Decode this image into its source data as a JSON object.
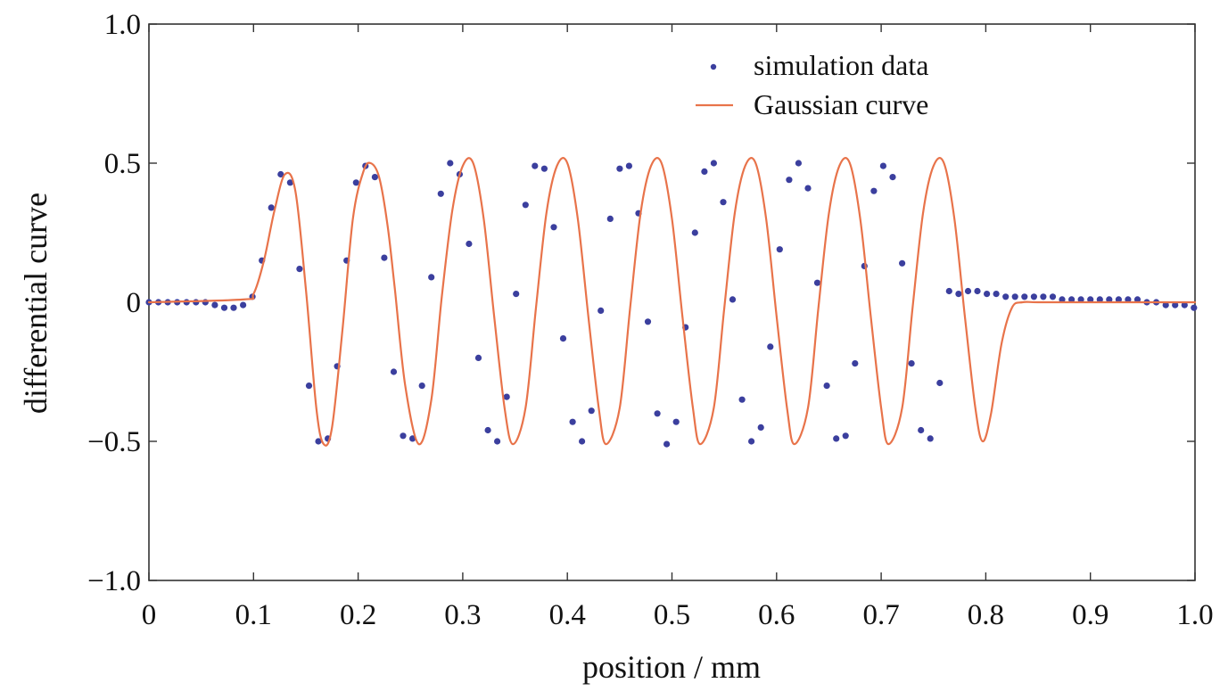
{
  "chart_data": {
    "type": "scatter",
    "title": "",
    "xlabel": "position / mm",
    "ylabel": "differential curve",
    "xlim": [
      0,
      1.0
    ],
    "ylim": [
      -1.0,
      1.0
    ],
    "xticks": [
      0,
      0.1,
      0.2,
      0.3,
      0.4,
      0.5,
      0.6,
      0.7,
      0.8,
      0.9,
      1.0
    ],
    "xtick_labels": [
      "0",
      "0.1",
      "0.2",
      "0.3",
      "0.4",
      "0.5",
      "0.6",
      "0.7",
      "0.8",
      "0.9",
      "1.0"
    ],
    "yticks": [
      -1.0,
      -0.5,
      0,
      0.5,
      1.0
    ],
    "ytick_labels": [
      "−1.0",
      "−0.5",
      "0",
      "0.5",
      "1.0"
    ],
    "grid": false,
    "legend_position": "top-right",
    "series": [
      {
        "name": "simulation data",
        "kind": "scatter",
        "color": "#3b3f9e",
        "x": [
          0.0,
          0.009,
          0.018,
          0.027,
          0.036,
          0.045,
          0.054,
          0.063,
          0.072,
          0.081,
          0.09,
          0.099,
          0.108,
          0.117,
          0.126,
          0.135,
          0.144,
          0.153,
          0.162,
          0.171,
          0.18,
          0.189,
          0.198,
          0.207,
          0.216,
          0.225,
          0.234,
          0.243,
          0.252,
          0.261,
          0.27,
          0.279,
          0.288,
          0.297,
          0.306,
          0.315,
          0.324,
          0.333,
          0.342,
          0.351,
          0.36,
          0.369,
          0.378,
          0.387,
          0.396,
          0.405,
          0.414,
          0.423,
          0.432,
          0.441,
          0.45,
          0.459,
          0.468,
          0.477,
          0.486,
          0.495,
          0.504,
          0.513,
          0.522,
          0.531,
          0.54,
          0.549,
          0.558,
          0.567,
          0.576,
          0.585,
          0.594,
          0.603,
          0.612,
          0.621,
          0.63,
          0.639,
          0.648,
          0.657,
          0.666,
          0.675,
          0.684,
          0.693,
          0.702,
          0.711,
          0.72,
          0.729,
          0.738,
          0.747,
          0.756,
          0.765,
          0.774,
          0.783,
          0.792,
          0.801,
          0.81,
          0.819,
          0.828,
          0.837,
          0.846,
          0.855,
          0.864,
          0.873,
          0.882,
          0.891,
          0.9,
          0.909,
          0.918,
          0.927,
          0.936,
          0.945,
          0.954,
          0.963,
          0.972,
          0.981,
          0.99,
          0.999
        ],
        "y": [
          0.0,
          0.0,
          0.0,
          0.0,
          0.0,
          0.0,
          0.0,
          -0.01,
          -0.02,
          -0.02,
          -0.01,
          0.02,
          0.15,
          0.34,
          0.46,
          0.43,
          0.12,
          -0.3,
          -0.5,
          -0.49,
          -0.23,
          0.15,
          0.43,
          0.49,
          0.45,
          0.16,
          -0.25,
          -0.48,
          -0.49,
          -0.3,
          0.09,
          0.39,
          0.5,
          0.46,
          0.21,
          -0.2,
          -0.46,
          -0.5,
          -0.34,
          0.03,
          0.35,
          0.49,
          0.48,
          0.27,
          -0.13,
          -0.43,
          -0.5,
          -0.39,
          -0.03,
          0.3,
          0.48,
          0.49,
          0.32,
          -0.07,
          -0.4,
          -0.51,
          -0.43,
          -0.09,
          0.25,
          0.47,
          0.5,
          0.36,
          0.01,
          -0.35,
          -0.5,
          -0.45,
          -0.16,
          0.19,
          0.44,
          0.5,
          0.41,
          0.07,
          -0.3,
          -0.49,
          -0.48,
          -0.22,
          0.13,
          0.4,
          0.49,
          0.45,
          0.14,
          -0.22,
          -0.46,
          -0.49,
          -0.29,
          0.04,
          0.03,
          0.04,
          0.04,
          0.03,
          0.03,
          0.02,
          0.02,
          0.02,
          0.02,
          0.02,
          0.02,
          0.01,
          0.01,
          0.01,
          0.01,
          0.01,
          0.01,
          0.01,
          0.01,
          0.01,
          0.0,
          0.0,
          -0.01,
          -0.01,
          -0.01,
          -0.02
        ]
      },
      {
        "name": "Gaussian curve",
        "kind": "line",
        "color": "#e8734a",
        "x": [
          0.0,
          0.09,
          0.1,
          0.11,
          0.12,
          0.13,
          0.14,
          0.15,
          0.16,
          0.167,
          0.175,
          0.185,
          0.195,
          0.205,
          0.212,
          0.22,
          0.228,
          0.235,
          0.245,
          0.258,
          0.27,
          0.28,
          0.29,
          0.3,
          0.31,
          0.32,
          0.33,
          0.34,
          0.348,
          0.36,
          0.37,
          0.38,
          0.39,
          0.4,
          0.41,
          0.42,
          0.43,
          0.437,
          0.45,
          0.46,
          0.47,
          0.48,
          0.49,
          0.5,
          0.51,
          0.52,
          0.527,
          0.54,
          0.55,
          0.56,
          0.57,
          0.58,
          0.59,
          0.6,
          0.61,
          0.617,
          0.63,
          0.64,
          0.65,
          0.66,
          0.67,
          0.68,
          0.69,
          0.7,
          0.707,
          0.72,
          0.73,
          0.74,
          0.75,
          0.76,
          0.77,
          0.78,
          0.79,
          0.797,
          0.805,
          0.815,
          0.825,
          0.835,
          0.85,
          0.9,
          1.0
        ],
        "y": [
          0.0,
          0.01,
          0.03,
          0.15,
          0.33,
          0.46,
          0.4,
          0.05,
          -0.38,
          -0.51,
          -0.45,
          -0.1,
          0.3,
          0.47,
          0.5,
          0.45,
          0.28,
          0.05,
          -0.3,
          -0.51,
          -0.35,
          0.02,
          0.33,
          0.49,
          0.5,
          0.3,
          -0.05,
          -0.38,
          -0.51,
          -0.38,
          -0.02,
          0.32,
          0.49,
          0.5,
          0.3,
          -0.05,
          -0.38,
          -0.51,
          -0.38,
          -0.02,
          0.32,
          0.49,
          0.5,
          0.3,
          -0.05,
          -0.38,
          -0.51,
          -0.38,
          -0.02,
          0.32,
          0.49,
          0.5,
          0.3,
          -0.05,
          -0.38,
          -0.51,
          -0.38,
          -0.02,
          0.32,
          0.49,
          0.5,
          0.3,
          -0.05,
          -0.38,
          -0.51,
          -0.38,
          -0.02,
          0.32,
          0.49,
          0.5,
          0.3,
          -0.05,
          -0.38,
          -0.5,
          -0.4,
          -0.15,
          -0.02,
          0.0,
          0.0,
          0.0,
          0.0
        ]
      }
    ]
  }
}
